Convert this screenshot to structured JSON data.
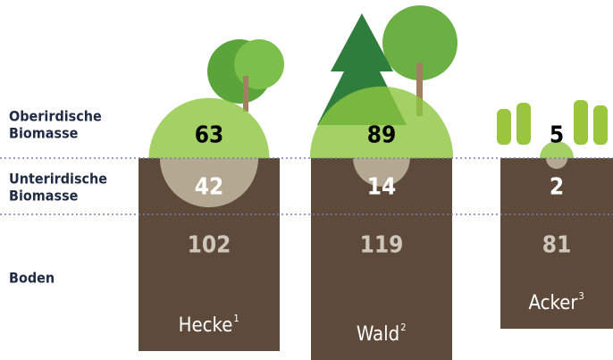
{
  "rows": [
    "Oberirdische Biomasse",
    "Unterirdische Biomasse",
    "Boden"
  ],
  "columns": [
    {
      "name": "Hecke",
      "note": "1",
      "above": 63,
      "below": 42,
      "soil": 102
    },
    {
      "name": "Wald",
      "note": "2",
      "above": 89,
      "below": 14,
      "soil": 119
    },
    {
      "name": "Acker",
      "note": "3",
      "above": 5,
      "below": 2,
      "soil": 81
    }
  ]
}
